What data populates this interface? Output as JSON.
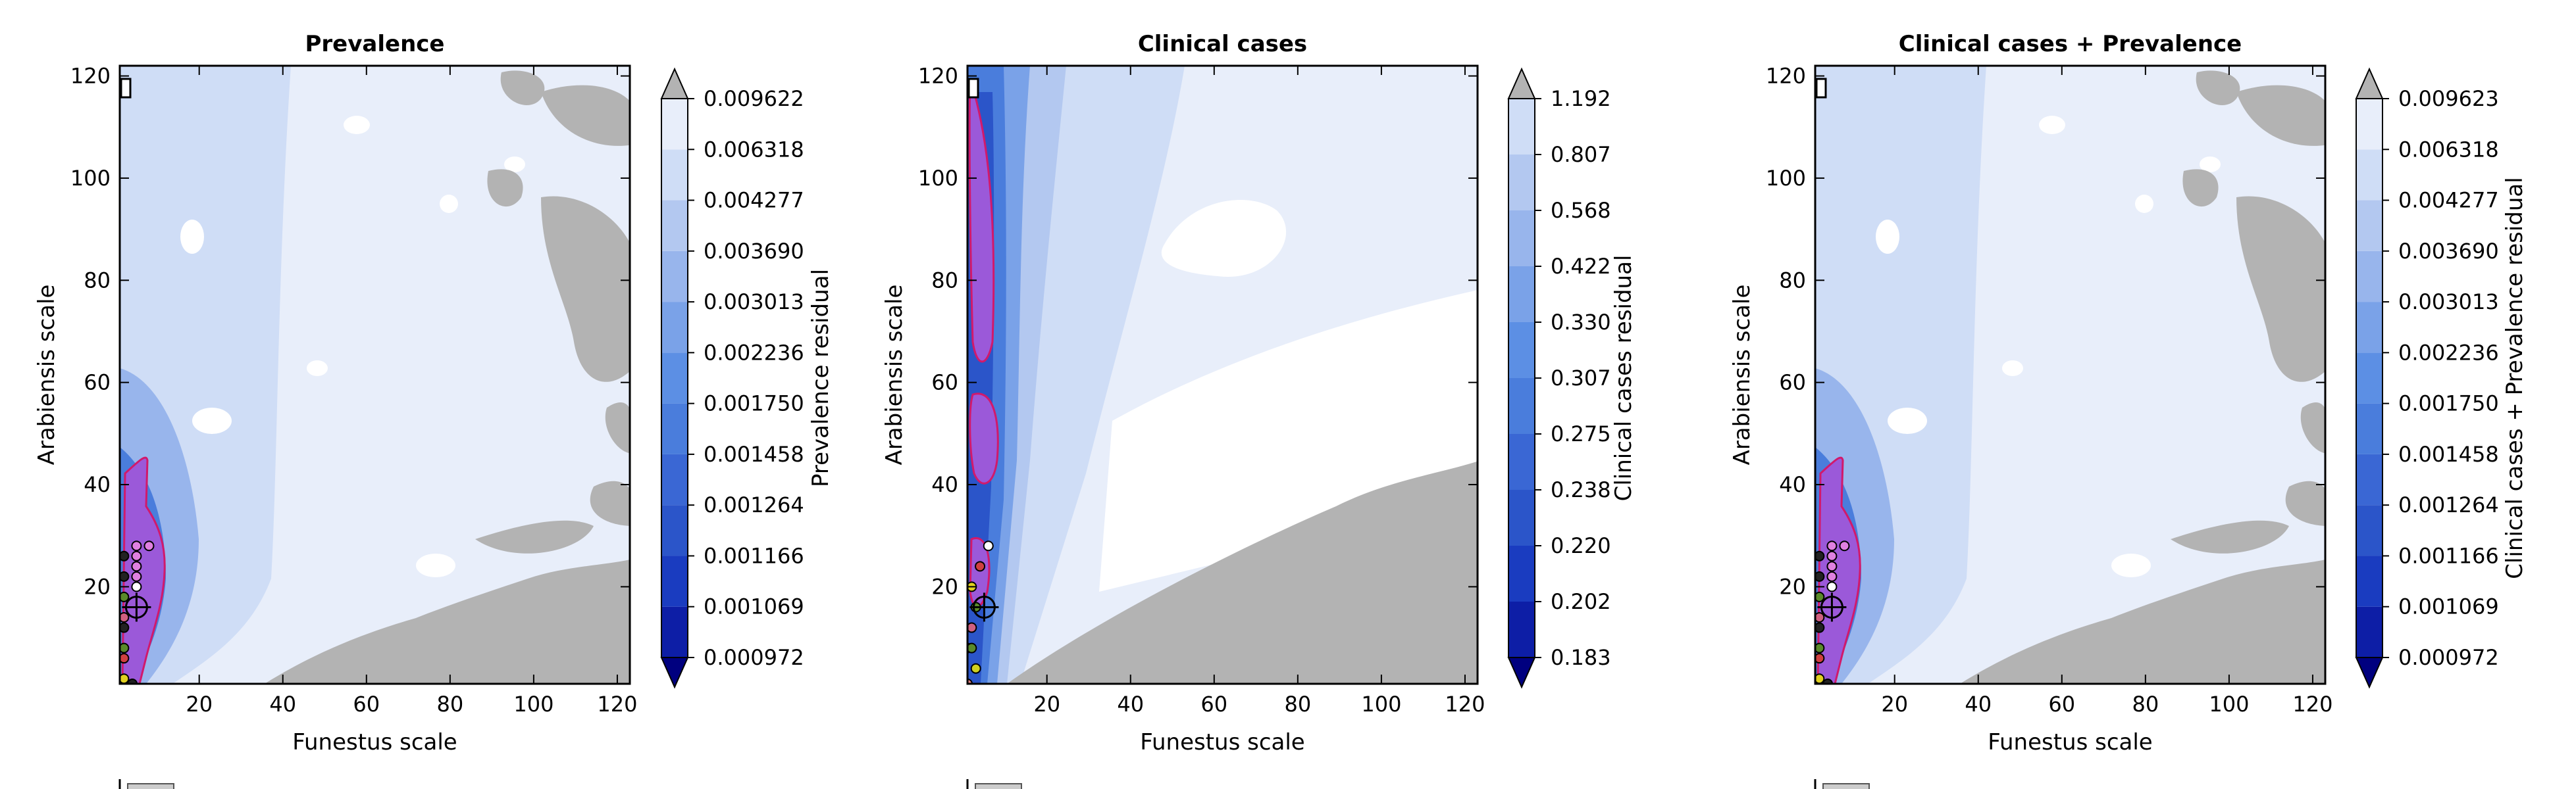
{
  "chart_data": [
    {
      "type": "contour",
      "title": "Prevalence",
      "xlabel": "Funestus scale",
      "ylabel": "Arabiensis scale",
      "colorbar_label": "Prevalence residual",
      "xlim": [
        1,
        123
      ],
      "ylim": [
        1,
        122
      ],
      "xticks": [
        20,
        40,
        60,
        80,
        100,
        120
      ],
      "yticks": [
        20,
        40,
        60,
        80,
        100,
        120
      ],
      "colorbar_levels": [
        "0.000972",
        "0.001069",
        "0.001166",
        "0.001264",
        "0.001458",
        "0.001750",
        "0.002236",
        "0.003013",
        "0.003690",
        "0.004277",
        "0.006318",
        "0.009622"
      ],
      "best_point": {
        "x": 5,
        "y": 16
      }
    },
    {
      "type": "contour",
      "title": "Clinical cases",
      "xlabel": "Funestus scale",
      "ylabel": "Arabiensis scale",
      "colorbar_label": "Clinical cases residual",
      "xlim": [
        1,
        123
      ],
      "ylim": [
        1,
        122
      ],
      "xticks": [
        20,
        40,
        60,
        80,
        100,
        120
      ],
      "yticks": [
        20,
        40,
        60,
        80,
        100,
        120
      ],
      "colorbar_levels": [
        "0.183",
        "0.202",
        "0.220",
        "0.238",
        "0.275",
        "0.307",
        "0.330",
        "0.422",
        "0.568",
        "0.807",
        "1.192"
      ],
      "best_point": {
        "x": 5,
        "y": 16
      }
    },
    {
      "type": "contour",
      "title": "Clinical cases + Prevalence",
      "xlabel": "Funestus scale",
      "ylabel": "Arabiensis scale",
      "colorbar_label": "Clinical cases + Prevalence residual",
      "xlim": [
        1,
        123
      ],
      "ylim": [
        1,
        122
      ],
      "xticks": [
        20,
        40,
        60,
        80,
        100,
        120
      ],
      "yticks": [
        20,
        40,
        60,
        80,
        100,
        120
      ],
      "colorbar_levels": [
        "0.000972",
        "0.001069",
        "0.001166",
        "0.001264",
        "0.001458",
        "0.001750",
        "0.002236",
        "0.003013",
        "0.003690",
        "0.004277",
        "0.006318",
        "0.009623"
      ],
      "best_point": {
        "x": 5,
        "y": 16
      }
    }
  ],
  "colors": {
    "gray_region": "#b3b3b3",
    "near_best": "#9b59d9",
    "near_best_outline": "#d1196b",
    "ramp": [
      "#00007f",
      "#0d1ea6",
      "#1a3cc0",
      "#2b55c9",
      "#3a67d4",
      "#4a7ddc",
      "#5c8fe4",
      "#7aa2e8",
      "#98b5ec",
      "#b3c8f0",
      "#cfddf6",
      "#e8eefa",
      "#ffffff"
    ]
  }
}
